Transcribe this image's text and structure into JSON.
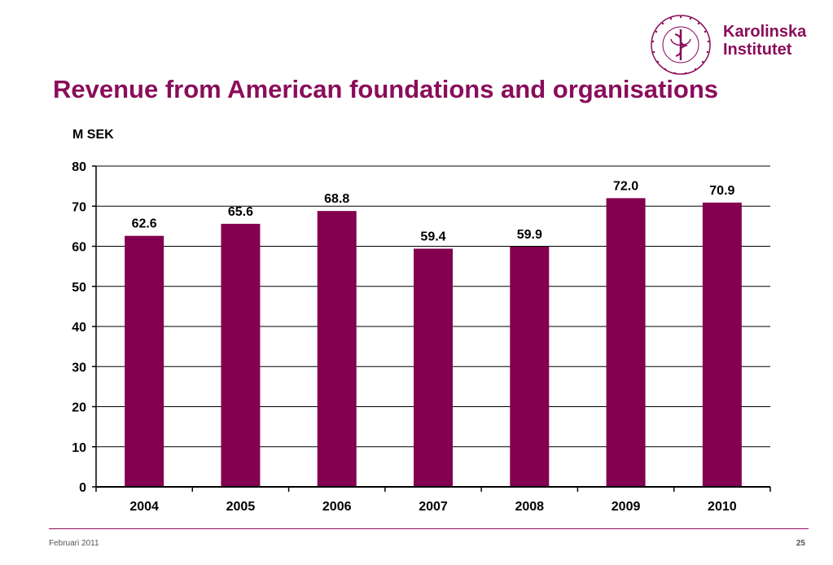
{
  "slide": {
    "title": "Revenue from American foundations and organisations",
    "footer_date": "Februari 2011",
    "page_number": "25"
  },
  "logo": {
    "line1": "Karolinska",
    "line2": "Institutet",
    "seal_text": "KAROLINSKA INSTITUTET • ANNO 1810",
    "color": "#8a0d5a"
  },
  "chart_data": {
    "type": "bar",
    "title": "",
    "ylabel": "M SEK",
    "xlabel": "",
    "categories": [
      "2004",
      "2005",
      "2006",
      "2007",
      "2008",
      "2009",
      "2010"
    ],
    "values": [
      62.6,
      65.6,
      68.8,
      59.4,
      59.9,
      72.0,
      70.9
    ],
    "value_labels": [
      "62.6",
      "65.6",
      "68.8",
      "59.4",
      "59.9",
      "72.0",
      "70.9"
    ],
    "ylim": [
      0,
      80
    ],
    "yticks": [
      0,
      10,
      20,
      30,
      40,
      50,
      60,
      70,
      80
    ],
    "grid": true,
    "legend": "none",
    "bar_color": "#82004f"
  }
}
